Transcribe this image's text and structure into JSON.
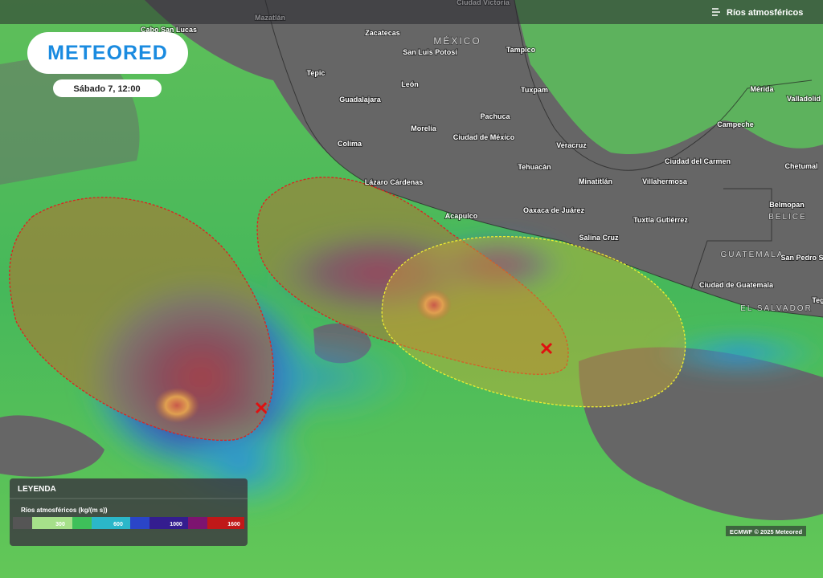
{
  "header": {
    "logo": "METEORED",
    "date": "Sábado 7, 12:00",
    "layer": "Ríos atmosféricos"
  },
  "map": {
    "places": [
      "Ciudad Victoria",
      "Mazatlán",
      "Cabo San Lucas",
      "Zacatecas",
      "MÉXICO",
      "San Luis Potosí",
      "Tampico",
      "Tepic",
      "León",
      "Guadalajara",
      "Tuxpam",
      "Mérida",
      "Valladolid",
      "Pachuca",
      "Campeche",
      "Morelia",
      "Ciudad de México",
      "Colima",
      "Veracruz",
      "Ciudad del Carmen",
      "Chetumal",
      "Tehuacán",
      "Lázaro Cárdenas",
      "Minatitlán",
      "Villahermosa",
      "Belmopan",
      "BELICE",
      "Acapulco",
      "Oaxaca de Juárez",
      "Tuxtla Gutiérrez",
      "Salina Cruz",
      "GUATEMALA",
      "San Pedro S",
      "Ciudad de Guatemala",
      "Teg",
      "EL SALVADOR"
    ]
  },
  "legend": {
    "title": "LEYENDA",
    "subtitle": "Ríos atmosféricos (kg/(m s))",
    "ticks": [
      "300",
      "600",
      "1000",
      "1600"
    ]
  },
  "credit": "ECMWF © 2025 Meteored"
}
